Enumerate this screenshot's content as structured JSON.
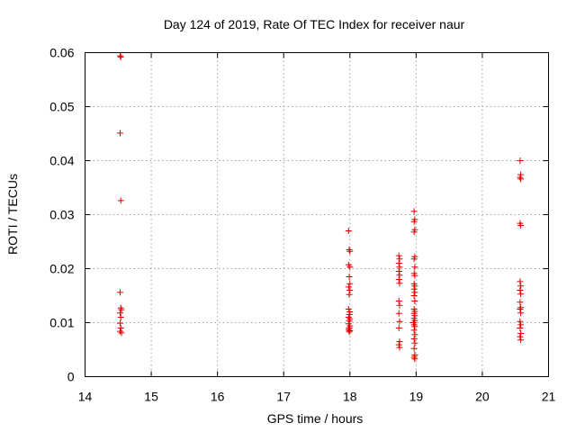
{
  "chart_data": {
    "type": "scatter",
    "title": "Day 124 of 2019, Rate Of TEC Index for receiver naur",
    "xlabel": "GPS time / hours",
    "ylabel": "ROTI / TECUs",
    "xlim": [
      14,
      21
    ],
    "ylim": [
      0,
      0.06
    ],
    "xticks": [
      "14",
      "15",
      "16",
      "17",
      "18",
      "19",
      "20",
      "21"
    ],
    "yticks": [
      "0",
      "0.01",
      "0.02",
      "0.03",
      "0.04",
      "0.05",
      "0.06"
    ],
    "grid": true,
    "marker": "plus",
    "marker_color": "#e00000",
    "points": [
      [
        14.53,
        0.0594
      ],
      [
        14.54,
        0.0592
      ],
      [
        14.53,
        0.0451
      ],
      [
        14.54,
        0.0326
      ],
      [
        14.53,
        0.0156
      ],
      [
        14.54,
        0.0127
      ],
      [
        14.55,
        0.0124
      ],
      [
        14.53,
        0.0118
      ],
      [
        14.54,
        0.011
      ],
      [
        14.53,
        0.0099
      ],
      [
        14.54,
        0.009
      ],
      [
        14.53,
        0.0084
      ],
      [
        14.55,
        0.0081
      ],
      [
        17.98,
        0.027
      ],
      [
        17.99,
        0.0235
      ],
      [
        18.0,
        0.0232
      ],
      [
        17.98,
        0.0207
      ],
      [
        18.0,
        0.0203
      ],
      [
        17.99,
        0.0185
      ],
      [
        18.0,
        0.0172
      ],
      [
        17.98,
        0.0166
      ],
      [
        18.0,
        0.016
      ],
      [
        17.99,
        0.0152
      ],
      [
        17.98,
        0.0125
      ],
      [
        18.0,
        0.012
      ],
      [
        17.99,
        0.0115
      ],
      [
        17.98,
        0.011
      ],
      [
        18.0,
        0.0107
      ],
      [
        17.99,
        0.0103
      ],
      [
        17.98,
        0.0098
      ],
      [
        18.0,
        0.0094
      ],
      [
        17.99,
        0.009
      ],
      [
        17.98,
        0.0087
      ],
      [
        18.0,
        0.0085
      ],
      [
        17.99,
        0.0083
      ],
      [
        18.74,
        0.0224
      ],
      [
        18.75,
        0.0218
      ],
      [
        18.74,
        0.021
      ],
      [
        18.75,
        0.0203
      ],
      [
        18.74,
        0.0195
      ],
      [
        18.75,
        0.0188
      ],
      [
        18.74,
        0.018
      ],
      [
        18.75,
        0.0173
      ],
      [
        18.74,
        0.014
      ],
      [
        18.75,
        0.0132
      ],
      [
        18.74,
        0.0117
      ],
      [
        18.75,
        0.0102
      ],
      [
        18.74,
        0.009
      ],
      [
        18.75,
        0.0065
      ],
      [
        18.74,
        0.0059
      ],
      [
        18.75,
        0.0054
      ],
      [
        18.97,
        0.0306
      ],
      [
        18.98,
        0.0291
      ],
      [
        18.97,
        0.0287
      ],
      [
        18.98,
        0.0272
      ],
      [
        18.97,
        0.0268
      ],
      [
        18.98,
        0.0222
      ],
      [
        18.97,
        0.0218
      ],
      [
        18.98,
        0.0203
      ],
      [
        18.97,
        0.0191
      ],
      [
        18.98,
        0.0187
      ],
      [
        18.97,
        0.0172
      ],
      [
        18.98,
        0.0168
      ],
      [
        18.97,
        0.0162
      ],
      [
        18.98,
        0.0156
      ],
      [
        18.97,
        0.015
      ],
      [
        18.98,
        0.014
      ],
      [
        18.97,
        0.0125
      ],
      [
        18.98,
        0.0121
      ],
      [
        18.97,
        0.0117
      ],
      [
        18.98,
        0.0113
      ],
      [
        18.97,
        0.0108
      ],
      [
        18.98,
        0.0104
      ],
      [
        18.96,
        0.01
      ],
      [
        18.97,
        0.0096
      ],
      [
        18.98,
        0.0093
      ],
      [
        18.97,
        0.0086
      ],
      [
        18.98,
        0.0078
      ],
      [
        18.97,
        0.007
      ],
      [
        18.98,
        0.0062
      ],
      [
        18.97,
        0.0052
      ],
      [
        18.98,
        0.004
      ],
      [
        18.97,
        0.0036
      ],
      [
        18.98,
        0.0033
      ],
      [
        20.57,
        0.04
      ],
      [
        20.58,
        0.0374
      ],
      [
        20.57,
        0.0369
      ],
      [
        20.58,
        0.0366
      ],
      [
        20.57,
        0.0284
      ],
      [
        20.58,
        0.028
      ],
      [
        20.57,
        0.0176
      ],
      [
        20.58,
        0.0168
      ],
      [
        20.57,
        0.016
      ],
      [
        20.58,
        0.0153
      ],
      [
        20.57,
        0.0138
      ],
      [
        20.58,
        0.0128
      ],
      [
        20.57,
        0.0125
      ],
      [
        20.58,
        0.0118
      ],
      [
        20.57,
        0.0102
      ],
      [
        20.58,
        0.0096
      ],
      [
        20.57,
        0.009
      ],
      [
        20.58,
        0.008
      ],
      [
        20.57,
        0.0074
      ],
      [
        20.58,
        0.0068
      ]
    ]
  }
}
